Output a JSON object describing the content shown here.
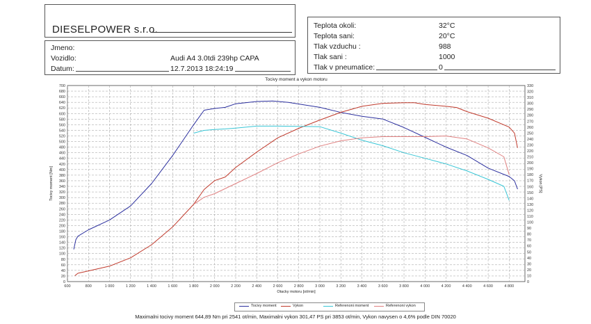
{
  "header": {
    "company": "DIESELPOWER s.r.o.",
    "jmeno_label": "Jmeno:",
    "jmeno_value": "",
    "vozidlo_label": "Vozidlo:",
    "vozidlo_value": "Audi A4 3.0tdi 239hp CAPA",
    "datum_label": "Datum:",
    "datum_value": "12.7.2013 18:24:19"
  },
  "conditions": [
    {
      "label": "Teplota okoli:",
      "value": "32°C"
    },
    {
      "label": "Teplota sani:",
      "value": "20°C"
    },
    {
      "label": "Tlak vzduchu :",
      "value": "988"
    },
    {
      "label": "Tlak sani :",
      "value": "1000"
    },
    {
      "label": "Tlak v pneumatice:",
      "value": "0"
    }
  ],
  "footer": "Maximalni tocivy moment 644,89 Nm pri 2541 ot/min,  Maximalni vykon 301,47 PS pri 3853 ot/min,  Vykon navysen o 4,6% podle DIN 70020",
  "chart_data": {
    "type": "line",
    "title": "Tocivy moment a vykon motoru",
    "xlabel": "Otacky motoru [ot/min]",
    "ylabel_left": "Tocivy moment [Nm]",
    "ylabel_right": "Vykon [PS]",
    "xlim": [
      600,
      4950
    ],
    "ylim_left": [
      0,
      700
    ],
    "ylim_right": [
      0,
      330
    ],
    "x_ticks": [
      600,
      800,
      1000,
      1200,
      1400,
      1600,
      1800,
      2000,
      2200,
      2400,
      2600,
      2800,
      3000,
      3200,
      3400,
      3600,
      3800,
      4000,
      4200,
      4400,
      4600,
      4800
    ],
    "x_tick_labels": [
      "600",
      "800",
      "1 000",
      "1 200",
      "1 400",
      "1 600",
      "1 800",
      "2 000",
      "2 200",
      "2 400",
      "2 600",
      "2 800",
      "3 000",
      "3 200",
      "3 400",
      "3 600",
      "3 800",
      "4 000",
      "4 200",
      "4 400",
      "4 600",
      "4 800"
    ],
    "y_left_step": 20,
    "y_right_step": 10,
    "grid": true,
    "legend_position": "bottom",
    "series": [
      {
        "name": "Tocivy moment",
        "axis": "left",
        "color": "#2b2f9e",
        "x": [
          660,
          680,
          700,
          800,
          1000,
          1200,
          1400,
          1600,
          1800,
          1900,
          2000,
          2100,
          2200,
          2400,
          2550,
          2700,
          2900,
          3000,
          3200,
          3400,
          3600,
          3800,
          4000,
          4200,
          4400,
          4600,
          4800,
          4850,
          4880
        ],
        "y": [
          115,
          150,
          162,
          185,
          220,
          270,
          350,
          450,
          560,
          612,
          618,
          622,
          635,
          643,
          645,
          640,
          628,
          622,
          604,
          590,
          580,
          550,
          515,
          480,
          450,
          405,
          375,
          360,
          330
        ]
      },
      {
        "name": "Vykon",
        "axis": "right",
        "color": "#c0392b",
        "x": [
          670,
          700,
          800,
          1000,
          1200,
          1400,
          1600,
          1800,
          1900,
          2000,
          2100,
          2200,
          2400,
          2600,
          2800,
          3000,
          3200,
          3400,
          3600,
          3800,
          3900,
          4000,
          4200,
          4300,
          4400,
          4600,
          4800,
          4850,
          4880
        ],
        "y": [
          10,
          14,
          18,
          26,
          40,
          62,
          92,
          130,
          155,
          170,
          176,
          192,
          218,
          242,
          258,
          272,
          285,
          295,
          300,
          301,
          301,
          298,
          295,
          293,
          286,
          275,
          260,
          250,
          225
        ]
      },
      {
        "name": "Referenoni moment",
        "axis": "left",
        "color": "#38c6d6",
        "x": [
          1800,
          1900,
          2000,
          2100,
          2200,
          2400,
          2600,
          2800,
          3000,
          3200,
          3400,
          3600,
          3800,
          4000,
          4200,
          4400,
          4600,
          4750,
          4800
        ],
        "y": [
          530,
          540,
          543,
          545,
          548,
          555,
          555,
          554,
          553,
          530,
          505,
          485,
          460,
          440,
          420,
          395,
          365,
          340,
          290
        ]
      },
      {
        "name": "Referenoni vykon",
        "axis": "right",
        "color": "#e08080",
        "x": [
          1800,
          1900,
          2000,
          2200,
          2400,
          2600,
          2800,
          3000,
          3200,
          3400,
          3600,
          3800,
          4000,
          4200,
          4400,
          4600,
          4750,
          4800
        ],
        "y": [
          130,
          142,
          148,
          165,
          182,
          200,
          215,
          228,
          237,
          242,
          244,
          244,
          244,
          245,
          240,
          225,
          210,
          180
        ]
      }
    ]
  }
}
